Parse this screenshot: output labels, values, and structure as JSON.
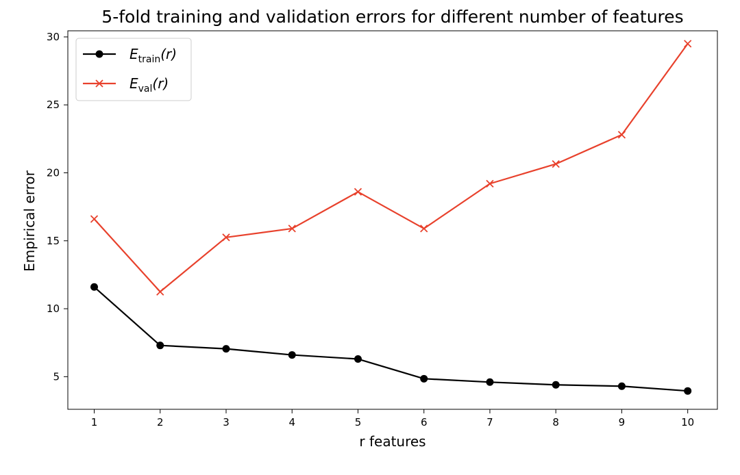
{
  "chart_data": {
    "type": "line",
    "title": "5-fold training and validation errors for different number of features",
    "xlabel": "r features",
    "ylabel": "Empirical error",
    "x": [
      1,
      2,
      3,
      4,
      5,
      6,
      7,
      8,
      9,
      10
    ],
    "xticks": [
      "1",
      "2",
      "3",
      "4",
      "5",
      "6",
      "7",
      "8",
      "9",
      "10"
    ],
    "yticks": [
      "5",
      "10",
      "15",
      "20",
      "25",
      "30"
    ],
    "xlim": [
      0.6,
      10.45
    ],
    "ylim": [
      2.6,
      30.45
    ],
    "grid": false,
    "legend_position": "top-left",
    "series": [
      {
        "name": "E_train(r)",
        "legend": {
          "main": "E",
          "sub": "train",
          "arg": "(r)"
        },
        "color": "#000000",
        "marker": "circle",
        "values": [
          11.6,
          7.3,
          7.05,
          6.6,
          6.3,
          4.85,
          4.6,
          4.4,
          4.3,
          3.95
        ]
      },
      {
        "name": "E_val(r)",
        "legend": {
          "main": "E",
          "sub": "val",
          "arg": "(r)"
        },
        "color": "#e8412c",
        "marker": "x",
        "values": [
          16.6,
          11.25,
          15.25,
          15.9,
          18.6,
          15.9,
          19.2,
          20.65,
          22.8,
          29.5
        ]
      }
    ]
  }
}
